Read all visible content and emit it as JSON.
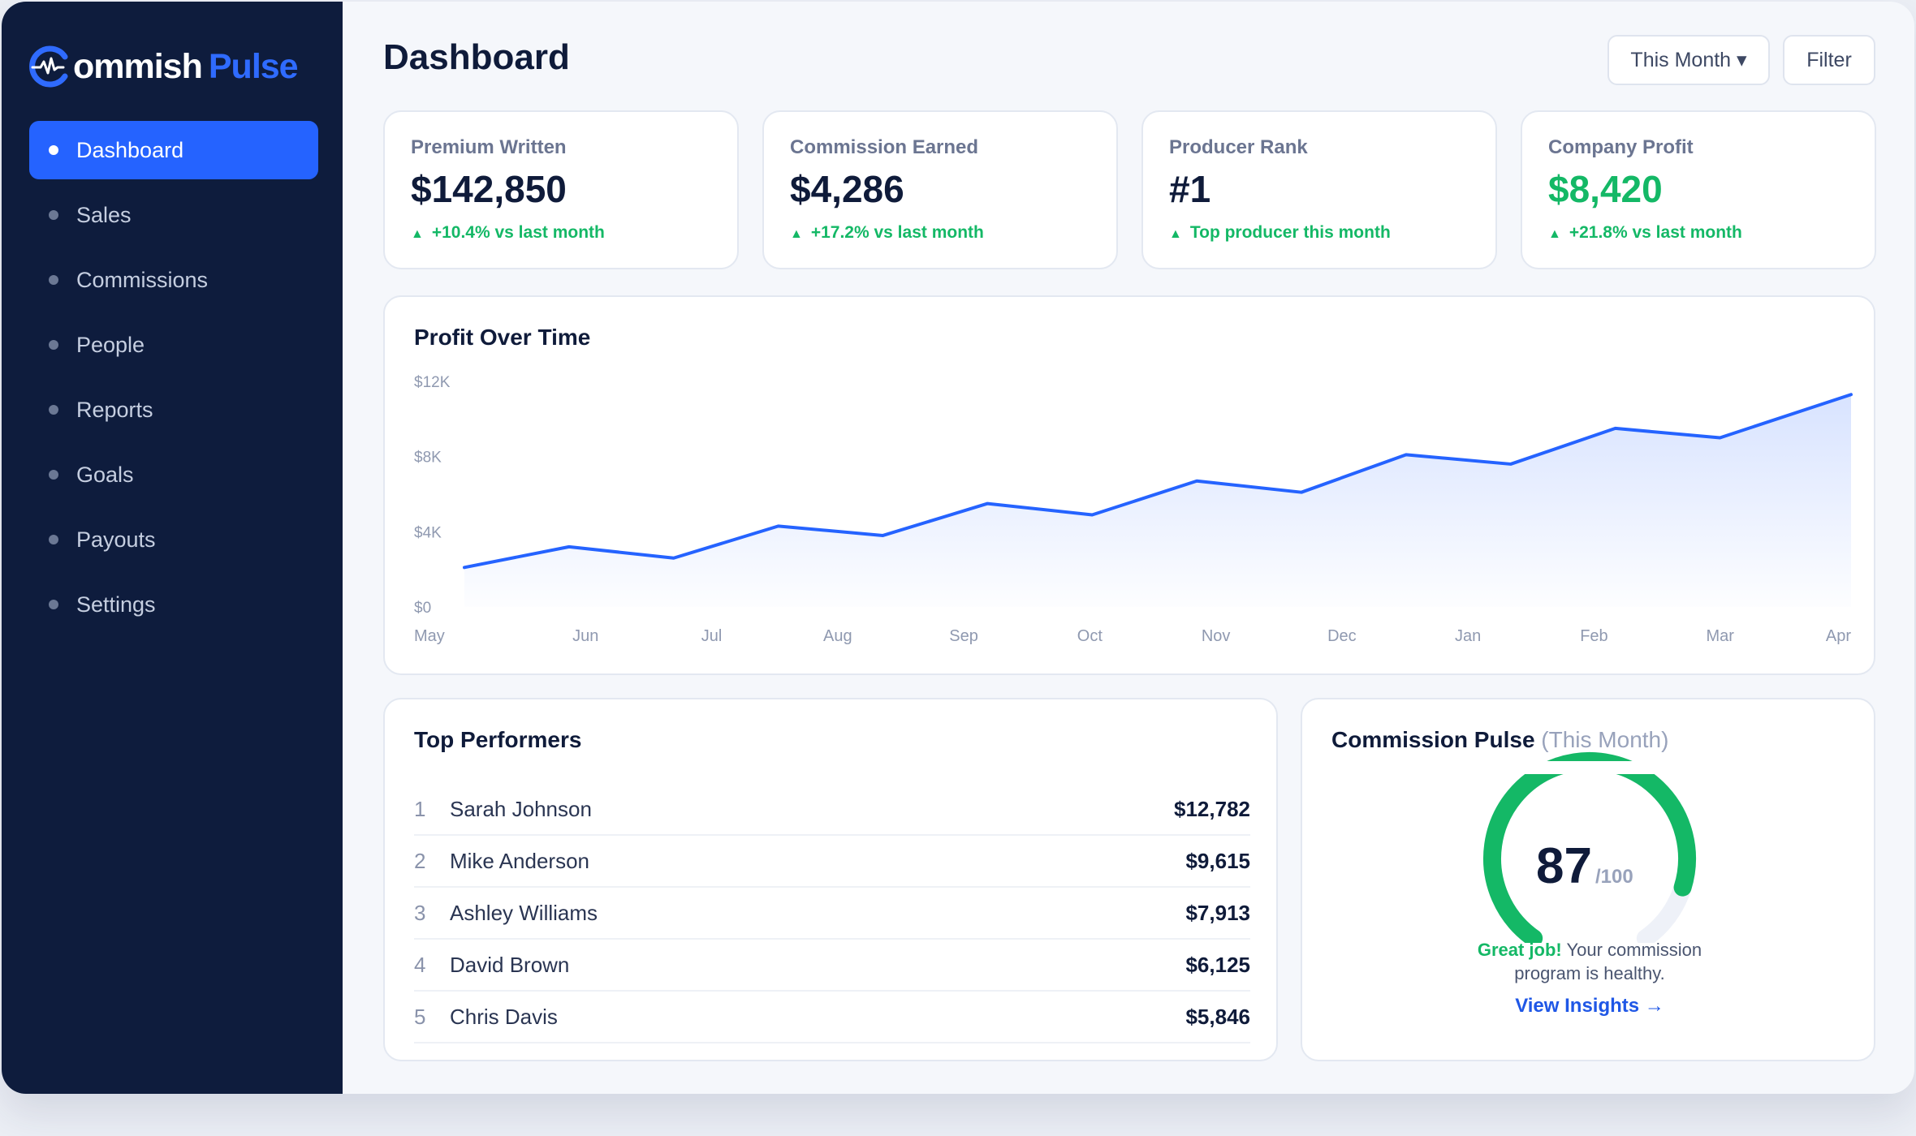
{
  "app": {
    "logo_text_white": "ommish",
    "logo_text_blue": "Pulse",
    "brand_color": "#2563ff"
  },
  "sidebar": {
    "items": [
      {
        "label": "Dashboard",
        "active": true
      },
      {
        "label": "Sales",
        "active": false
      },
      {
        "label": "Commissions",
        "active": false
      },
      {
        "label": "People",
        "active": false
      },
      {
        "label": "Reports",
        "active": false
      },
      {
        "label": "Goals",
        "active": false
      },
      {
        "label": "Payouts",
        "active": false
      },
      {
        "label": "Settings",
        "active": false
      }
    ]
  },
  "header": {
    "title": "Dashboard",
    "period_button": "This Month ▾",
    "filter_button": "Filter"
  },
  "stats": [
    {
      "label": "Premium Written",
      "value": "$142,850",
      "change": "+10.4% vs last month"
    },
    {
      "label": "Commission Earned",
      "value": "$4,286",
      "change": "+17.2% vs last month"
    },
    {
      "label": "Producer Rank",
      "value": "#1",
      "change": "Top producer this month"
    },
    {
      "label": "Company Profit",
      "value": "$8,420",
      "change": "+21.8% vs last month"
    }
  ],
  "chart_data": {
    "type": "area",
    "title": "Profit Over Time",
    "categories": [
      "May",
      "Jun",
      "Jul",
      "Aug",
      "Sep",
      "Oct",
      "Nov",
      "Dec",
      "Jan",
      "Feb",
      "Mar",
      "Apr"
    ],
    "values": [
      2100,
      3200,
      2600,
      4300,
      3800,
      5500,
      4900,
      6700,
      6100,
      8100,
      7600,
      9500,
      9000,
      11300
    ],
    "x": [
      0,
      0.83,
      1.66,
      2.49,
      3.32,
      4.15,
      4.98,
      5.81,
      6.64,
      7.47,
      8.3,
      9.13,
      9.96,
      11
    ],
    "y_ticks": [
      "$0",
      "$4K",
      "$8K",
      "$12K"
    ],
    "ylim": [
      0,
      12000
    ],
    "line_color": "#2563ff"
  },
  "top_performers": {
    "title": "Top Performers",
    "rows": [
      {
        "rank": "1",
        "name": "Sarah Johnson",
        "amount": "$12,782"
      },
      {
        "rank": "2",
        "name": "Mike Anderson",
        "amount": "$9,615"
      },
      {
        "rank": "3",
        "name": "Ashley Williams",
        "amount": "$7,913"
      },
      {
        "rank": "4",
        "name": "David Brown",
        "amount": "$6,125"
      },
      {
        "rank": "5",
        "name": "Chris Davis",
        "amount": "$5,846"
      }
    ]
  },
  "pulse": {
    "title": "Commission Pulse",
    "title_suffix": "(This Month)",
    "score": "87",
    "max": "/100",
    "score_value": 87,
    "good_text": "Great job!",
    "message_1": " Your commission",
    "message_2": "program is healthy.",
    "link": "View Insights →",
    "gauge_color": "#14b866"
  }
}
